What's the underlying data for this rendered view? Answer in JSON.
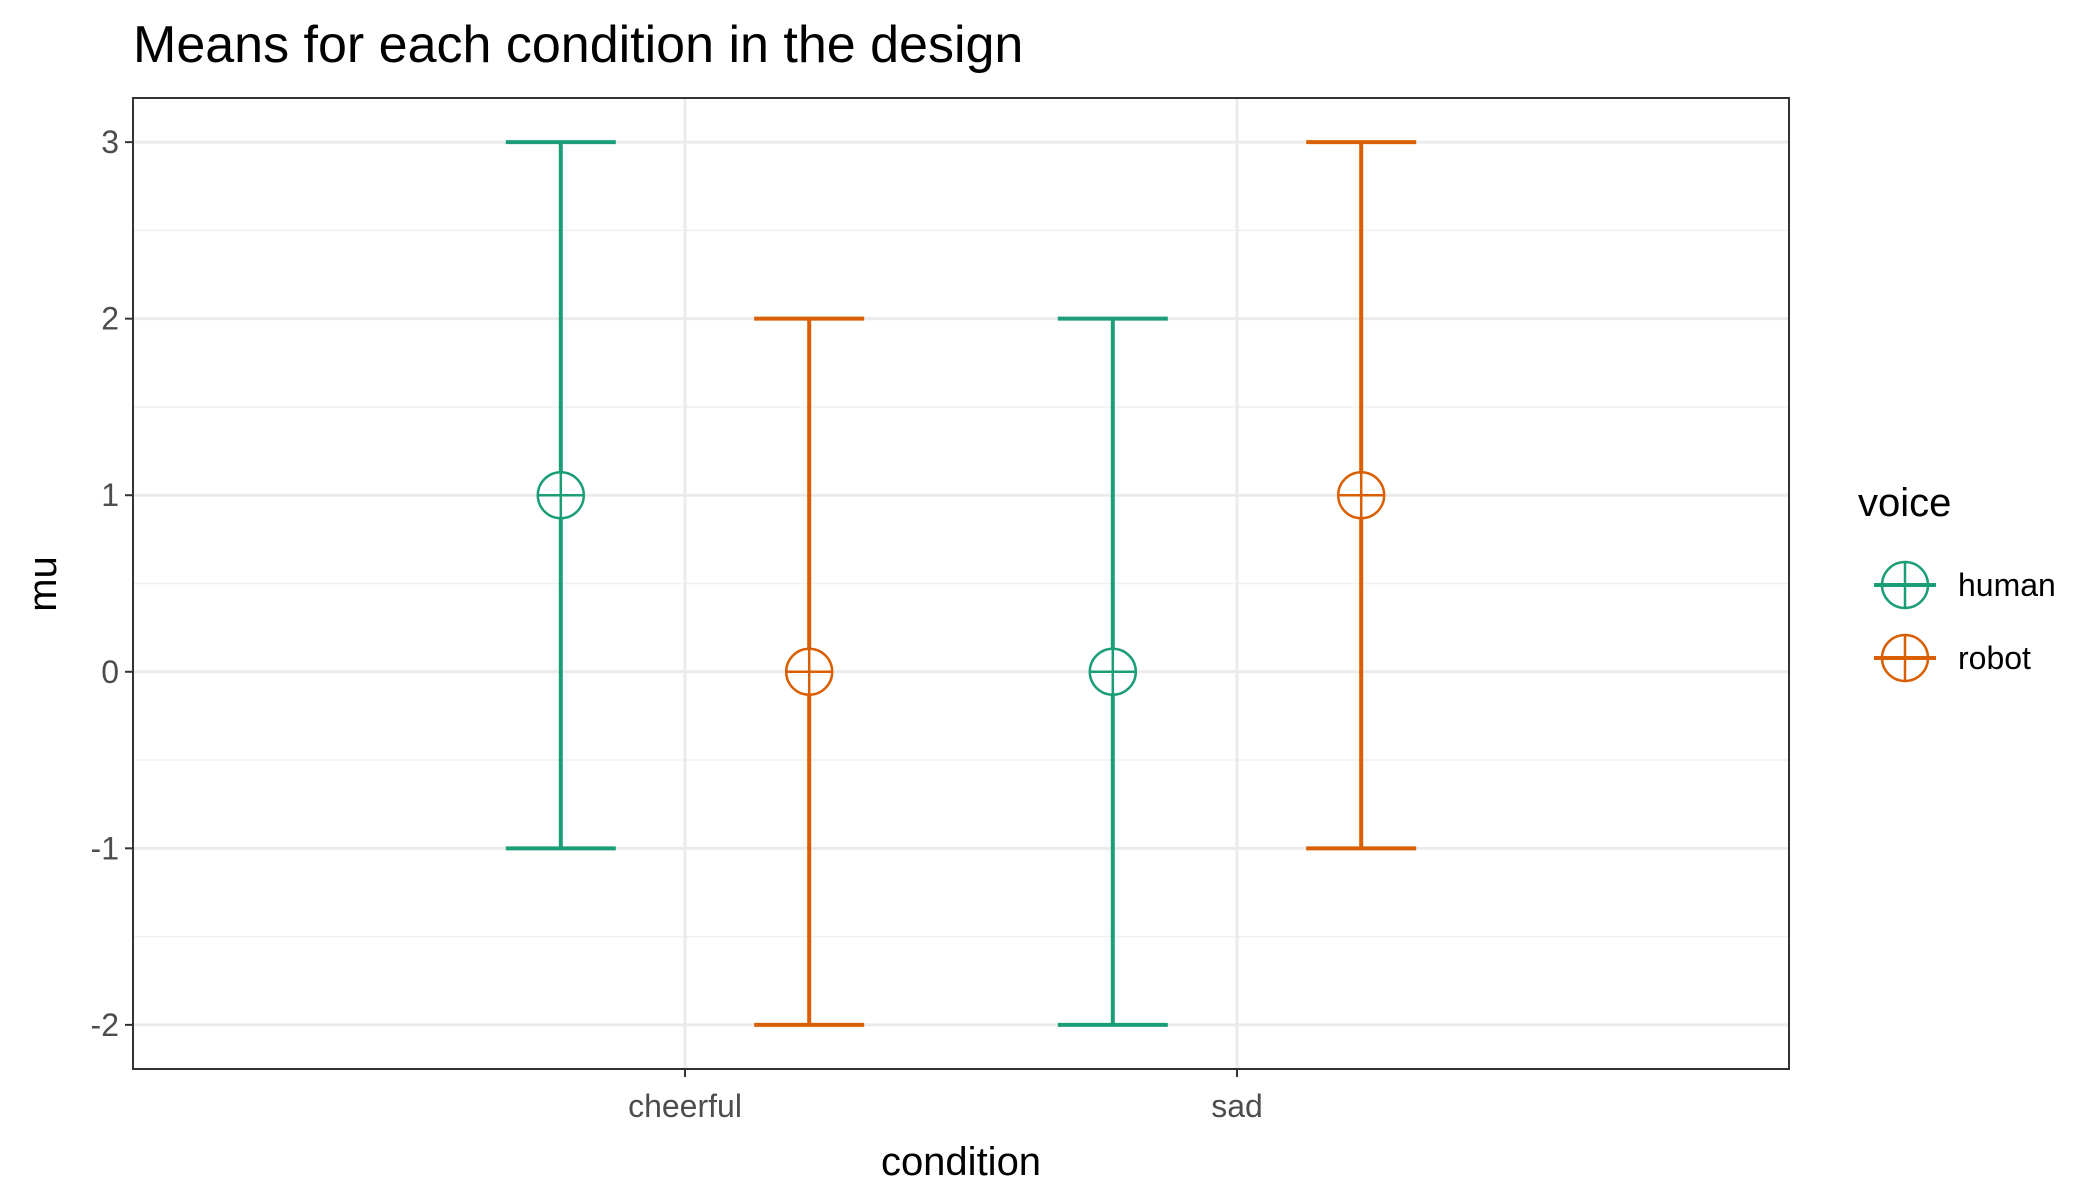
{
  "chart_data": {
    "type": "scatter",
    "title": "Means for each condition in the design",
    "xlabel": "condition",
    "ylabel": "mu",
    "categories": [
      "cheerful",
      "sad"
    ],
    "ylim": [
      -2.25,
      3.25
    ],
    "yticks": [
      "-2",
      "-1",
      "0",
      "1",
      "2",
      "3"
    ],
    "grid": true,
    "legend": {
      "title": "voice",
      "position": "right"
    },
    "series": [
      {
        "name": "human",
        "color": "#1b9e77",
        "points": [
          {
            "category": "cheerful",
            "y": 1,
            "ymin": -1,
            "ymax": 3
          },
          {
            "category": "sad",
            "y": 0,
            "ymin": -2,
            "ymax": 2
          }
        ]
      },
      {
        "name": "robot",
        "color": "#d95f02",
        "points": [
          {
            "category": "cheerful",
            "y": 0,
            "ymin": -2,
            "ymax": 2
          },
          {
            "category": "sad",
            "y": 1,
            "ymin": -1,
            "ymax": 3
          }
        ]
      }
    ]
  }
}
